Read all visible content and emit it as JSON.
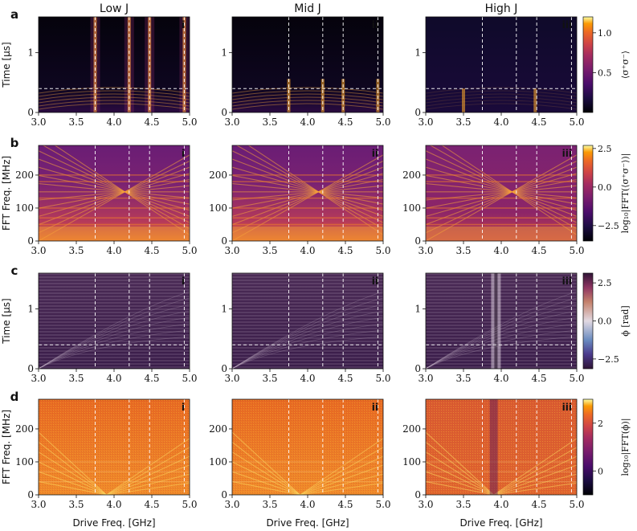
{
  "columns": [
    "Low J",
    "Mid J",
    "High J"
  ],
  "rows": [
    {
      "letter": "a",
      "ylabel": "Time [μs]",
      "cbar_label": "⟨σ⁺σ⁻⟩",
      "cbar_ticks": [
        "1.0",
        "0.5"
      ]
    },
    {
      "letter": "b",
      "ylabel": "FFT Freq. [MHz]",
      "cbar_label": "log₁₀|FFT(⟨σ⁺σ⁻⟩)|",
      "cbar_ticks": [
        "2.5",
        "0.0",
        "−2.5"
      ]
    },
    {
      "letter": "c",
      "ylabel": "Time [μs]",
      "cbar_label": "ϕ [rad]",
      "cbar_ticks": [
        "2.5",
        "0.0",
        "−2.5"
      ]
    },
    {
      "letter": "d",
      "ylabel": "FFT Freq. [MHz]",
      "cbar_label": "log₁₀|FFT(ϕ)|",
      "cbar_ticks": [
        "2",
        "0"
      ]
    }
  ],
  "panel_tags": [
    "i",
    "ii",
    "iii"
  ],
  "xlabel": "Drive Freq. [GHz]",
  "xticks": [
    "3.0",
    "3.5",
    "4.0",
    "4.5",
    "5.0"
  ],
  "yticks_time": [
    "0",
    "1"
  ],
  "yticks_fft": [
    "0",
    "100",
    "200"
  ],
  "chart_data": {
    "type": "heatmap",
    "grid": "4x3",
    "x_range_GHz": [
      3.0,
      5.0
    ],
    "time_range_us": [
      0,
      1.6
    ],
    "fft_range_MHz": [
      0,
      290
    ],
    "dashed_vertical_GHz": [
      3.75,
      4.2,
      4.47,
      4.93
    ],
    "dashed_horizontal_time_us": 0.4,
    "colorbar_ranges": {
      "a": [
        0,
        1.2
      ],
      "b": [
        -3.5,
        2.7
      ],
      "c": [
        -3.14,
        3.14
      ],
      "d": [
        -1,
        3
      ]
    }
  }
}
